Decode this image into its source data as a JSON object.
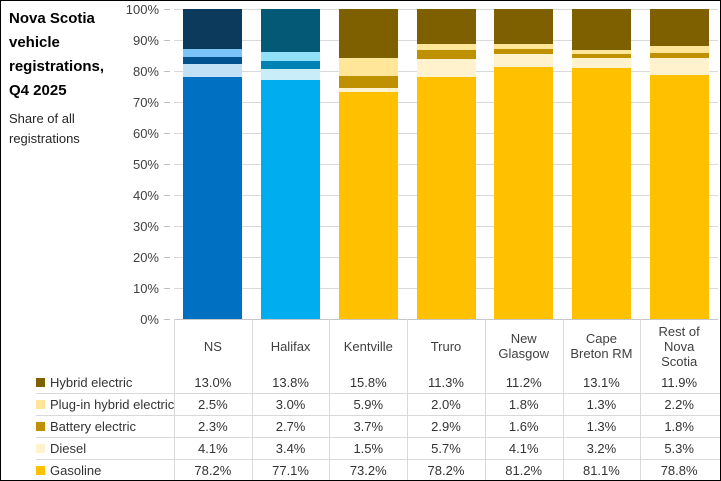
{
  "header": {
    "title": "Nova Scotia vehicle registrations, Q4 2025",
    "subtitle": "Share of all registrations"
  },
  "chart_data": {
    "type": "bar",
    "stacked": true,
    "percent_of_total": true,
    "title": "Nova Scotia vehicle registrations, Q4 2025",
    "subtitle": "Share of all registrations",
    "categories": [
      "NS",
      "Halifax",
      "Kentville",
      "Truro",
      "New Glasgow",
      "Cape Breton RM",
      "Rest of Nova Scotia"
    ],
    "series": [
      {
        "name": "Hybrid electric",
        "values": [
          13.0,
          13.8,
          15.8,
          11.3,
          11.2,
          13.1,
          11.9
        ]
      },
      {
        "name": "Plug-in hybrid electric",
        "values": [
          2.5,
          3.0,
          5.9,
          2.0,
          1.8,
          1.3,
          2.2
        ]
      },
      {
        "name": "Battery electric",
        "values": [
          2.3,
          2.7,
          3.7,
          2.9,
          1.6,
          1.3,
          1.8
        ]
      },
      {
        "name": "Diesel",
        "values": [
          4.1,
          3.4,
          1.5,
          5.7,
          4.1,
          3.2,
          5.3
        ]
      },
      {
        "name": "Gasoline",
        "values": [
          78.2,
          77.1,
          73.2,
          78.2,
          81.2,
          81.1,
          78.8
        ]
      }
    ],
    "value_suffix": "%",
    "ylim": [
      0,
      100
    ],
    "ytick_step": 10,
    "ytick_labels": [
      "0%",
      "10%",
      "20%",
      "30%",
      "40%",
      "50%",
      "60%",
      "70%",
      "80%",
      "90%",
      "100%"
    ],
    "grid": true,
    "legend_position": "bottom-table",
    "legend_colors": [
      "#7F6000",
      "#FFE699",
      "#BF9000",
      "#FFF2CC",
      "#FFC000"
    ],
    "column_palettes": [
      [
        "#0C3A5C",
        "#7CC4F7",
        "#02528F",
        "#C2E0F6",
        "#0070C2"
      ],
      [
        "#045A76",
        "#92E0F8",
        "#0082B4",
        "#C9EEFA",
        "#00AEEF"
      ],
      [
        "#7F6000",
        "#FFE699",
        "#BF9000",
        "#FFF2CC",
        "#FFC000"
      ],
      [
        "#7F6000",
        "#FFE699",
        "#BF9000",
        "#FFF2CC",
        "#FFC000"
      ],
      [
        "#7F6000",
        "#FFE699",
        "#BF9000",
        "#FFF2CC",
        "#FFC000"
      ],
      [
        "#7F6000",
        "#FFE699",
        "#BF9000",
        "#FFF2CC",
        "#FFC000"
      ],
      [
        "#7F6000",
        "#FFE699",
        "#BF9000",
        "#FFF2CC",
        "#FFC000"
      ]
    ],
    "gridline_color": "#D9D9D9",
    "axis_line_color": "#C6C6C6"
  }
}
